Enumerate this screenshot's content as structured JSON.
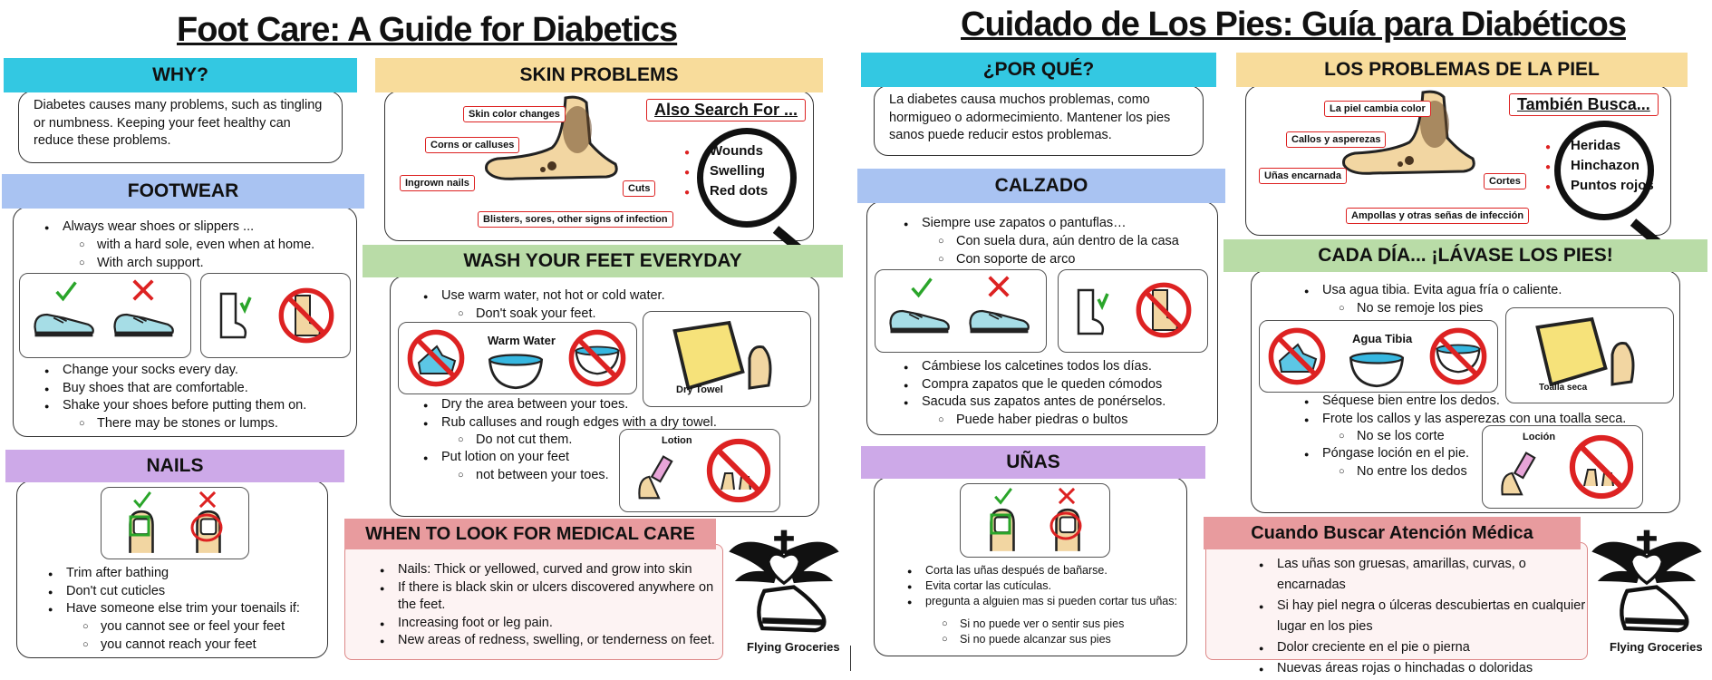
{
  "en": {
    "title": "Foot Care: A Guide for Diabetics",
    "why": {
      "heading": "WHY?",
      "text": "Diabetes causes many problems, such as tingling or numbness. Keeping your feet healthy can reduce these problems."
    },
    "skin": {
      "heading": "SKIN PROBLEMS",
      "labels": [
        "Skin color changes",
        "Corns or calluses",
        "Ingrown nails",
        "Cuts",
        "Blisters, sores, other signs of infection"
      ],
      "also_search": "Also Search For ...",
      "search_items": [
        "Wounds",
        "Swelling",
        "Red dots"
      ]
    },
    "footwear": {
      "heading": "FOOTWEAR",
      "item1": "Always wear shoes or slippers ...",
      "sub1": [
        "with a hard sole, even when at home.",
        "With arch support."
      ],
      "items2": [
        "Change your socks every day.",
        "Buy shoes that are comfortable.",
        "Shake your shoes before putting them on."
      ],
      "sub2": "There may be stones or lumps."
    },
    "wash": {
      "heading": "WASH YOUR FEET EVERYDAY",
      "item1": "Use warm water, not hot or cold water.",
      "sub1": "Don't soak your feet.",
      "warm_water": "Warm Water",
      "dry_towel": "Dry Towel",
      "items2": [
        "Dry the area between your toes.",
        "Rub calluses and rough edges with a dry towel."
      ],
      "sub2": "Do not cut them.",
      "item3": "Put lotion on your feet",
      "sub3": "not between your toes.",
      "lotion": "Lotion"
    },
    "nails": {
      "heading": "NAILS",
      "items": [
        "Trim after bathing",
        "Don't cut cuticles",
        "Have someone else trim your toenails if:"
      ],
      "sub": [
        "you cannot see or feel your feet",
        "you cannot reach your feet"
      ]
    },
    "medical": {
      "heading": "WHEN TO LOOK FOR MEDICAL CARE",
      "items": [
        "Nails: Thick or yellowed, curved and grow into skin",
        "If there is black skin or ulcers discovered anywhere on the feet.",
        "Increasing foot or leg pain.",
        "New areas of redness, swelling, or tenderness on feet."
      ]
    },
    "logo_text": "Flying Groceries"
  },
  "es": {
    "title": "Cuidado de Los Pies: Guía para Diabéticos",
    "why": {
      "heading": "¿POR QUÉ?",
      "text": "La diabetes causa muchos problemas, como hormigueo o adormecimiento. Mantener los pies sanos puede reducir estos problemas."
    },
    "skin": {
      "heading": "LOS PROBLEMAS DE LA PIEL",
      "labels": [
        "La piel cambia color",
        "Callos y asperezas",
        "Uñas encarnada",
        "Cortes",
        "Ampollas y otras señas de infección"
      ],
      "also_search": "También Busca...",
      "search_items": [
        "Heridas",
        "Hinchazon",
        "Puntos rojos"
      ]
    },
    "footwear": {
      "heading": "CALZADO",
      "item1": "Siempre use zapatos o pantuflas…",
      "sub1": [
        "Con suela dura, aún dentro de la casa",
        "Con soporte de arco"
      ],
      "items2": [
        "Cámbiese los calcetines todos los días.",
        "Compra zapatos que le queden cómodos",
        "Sacuda sus zapatos antes de ponérselos."
      ],
      "sub2": "Puede haber piedras o bultos"
    },
    "wash": {
      "heading": "CADA DÍA... ¡LÁVASE LOS PIES!",
      "item1": "Usa agua tibia. Evita agua fría o caliente.",
      "sub1": "No se remoje los pies",
      "warm_water": "Agua Tibia",
      "dry_towel": "Toalla seca",
      "items2": [
        "Séquese bien entre los dedos.",
        "Frote los callos y las asperezas con una toalla seca."
      ],
      "sub2": "No se los corte",
      "item3": "Póngase loción en el pie.",
      "sub3": "No entre los dedos",
      "lotion": "Loción"
    },
    "nails": {
      "heading": "UÑAS",
      "items": [
        "Corta las uñas después de bañarse.",
        "Evita cortar las cutículas.",
        "pregunta a alguien mas si pueden cortar tus uñas:"
      ],
      "sub": [
        "Si no puede ver o sentir sus pies",
        "Si no puede alcanzar sus pies"
      ]
    },
    "medical": {
      "heading": "Cuando Buscar Atención Médica",
      "items": [
        "Las uñas son gruesas, amarillas, curvas, o encarnadas",
        "Si hay piel negra o úlceras descubiertas en cualquier lugar en los pies",
        "Dolor creciente en el pie o pierna",
        "Nuevas áreas rojas o hinchadas o doloridas"
      ]
    },
    "logo_text": "Flying Groceries"
  },
  "colors": {
    "why": "#33c8e2",
    "skin": "#f8dc9b",
    "footwear": "#a9c3f2",
    "wash": "#b9dca7",
    "nails": "#cda9e8",
    "medical": "#e89b9e",
    "accent_red": "#dd2222",
    "check_green": "#2aa52a"
  },
  "icons": [
    "foot-icon",
    "magnifier-icon",
    "shoe-icon",
    "sock-icon",
    "no-barefoot-icon",
    "no-cold-water-icon",
    "warm-water-bowl-icon",
    "no-hot-water-icon",
    "towel-icon",
    "lotion-icon",
    "no-lotion-between-toes-icon",
    "nail-ok-icon",
    "nail-bad-icon",
    "winged-shoe-logo-icon"
  ]
}
